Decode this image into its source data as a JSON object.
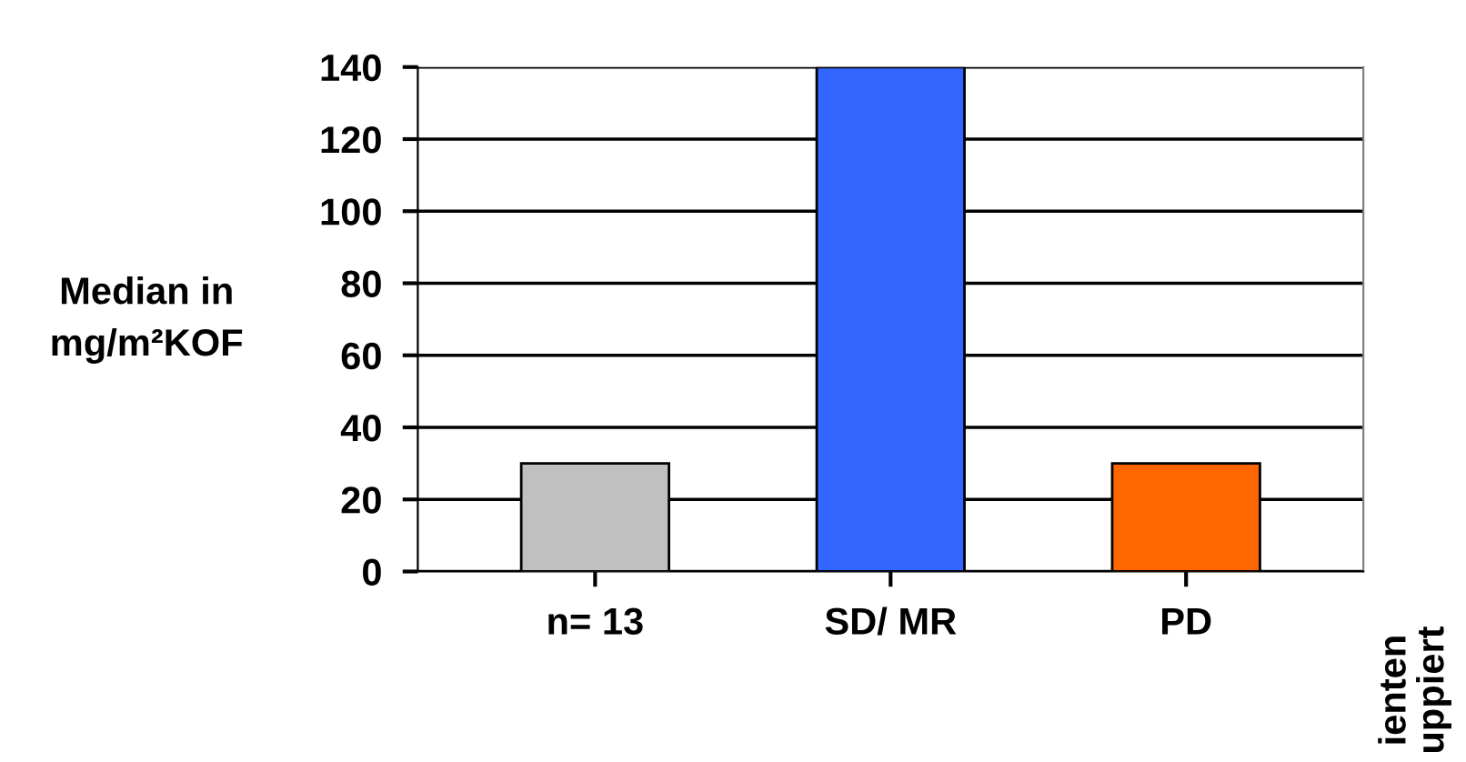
{
  "chart_data": {
    "type": "bar",
    "ylabel": "Median in\nmg/m²KOF",
    "categories": [
      "n= 13",
      "SD/ MR",
      "PD"
    ],
    "values": [
      30,
      140,
      30
    ],
    "colors": [
      "#c0c0c0",
      "#3366ff",
      "#ff6600"
    ],
    "ylim": [
      0,
      140
    ],
    "yticks": [
      0,
      20,
      40,
      60,
      80,
      100,
      120,
      140
    ],
    "grid": "y",
    "legend": false,
    "annotations": [
      "ienten\nuppiert"
    ]
  }
}
